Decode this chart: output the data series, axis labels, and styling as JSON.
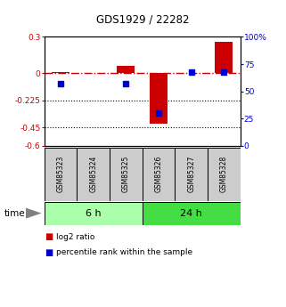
{
  "title": "GDS1929 / 22282",
  "samples": [
    "GSM85323",
    "GSM85324",
    "GSM85325",
    "GSM85326",
    "GSM85327",
    "GSM85328"
  ],
  "log2_ratio": [
    0.01,
    0.0,
    0.06,
    -0.42,
    0.0,
    0.26
  ],
  "percentile_rank": [
    57,
    null,
    57,
    30,
    68,
    68
  ],
  "groups": [
    {
      "label": "6 h",
      "color_light": "#bbffbb",
      "color_dark": "#33cc33",
      "start": 0,
      "end": 3
    },
    {
      "label": "24 h",
      "color_light": "#33cc33",
      "color_dark": "#33cc33",
      "start": 3,
      "end": 6
    }
  ],
  "ylim_left": [
    -0.6,
    0.3
  ],
  "ylim_right": [
    0,
    100
  ],
  "yticks_left": [
    0.3,
    0.0,
    -0.225,
    -0.45,
    -0.6
  ],
  "ytick_labels_left": [
    "0.3",
    "0",
    "-0.225",
    "-0.45",
    "-0.6"
  ],
  "yticks_right": [
    100,
    75,
    50,
    25,
    0
  ],
  "ytick_labels_right": [
    "100%",
    "75",
    "50",
    "25",
    "0"
  ],
  "hlines": [
    -0.225,
    -0.45
  ],
  "bar_color": "#cc0000",
  "dot_color": "#0000cc",
  "bar_width": 0.55,
  "legend_items": [
    "log2 ratio",
    "percentile rank within the sample"
  ],
  "time_label": "time",
  "fig_width": 3.21,
  "fig_height": 3.45,
  "dpi": 100
}
